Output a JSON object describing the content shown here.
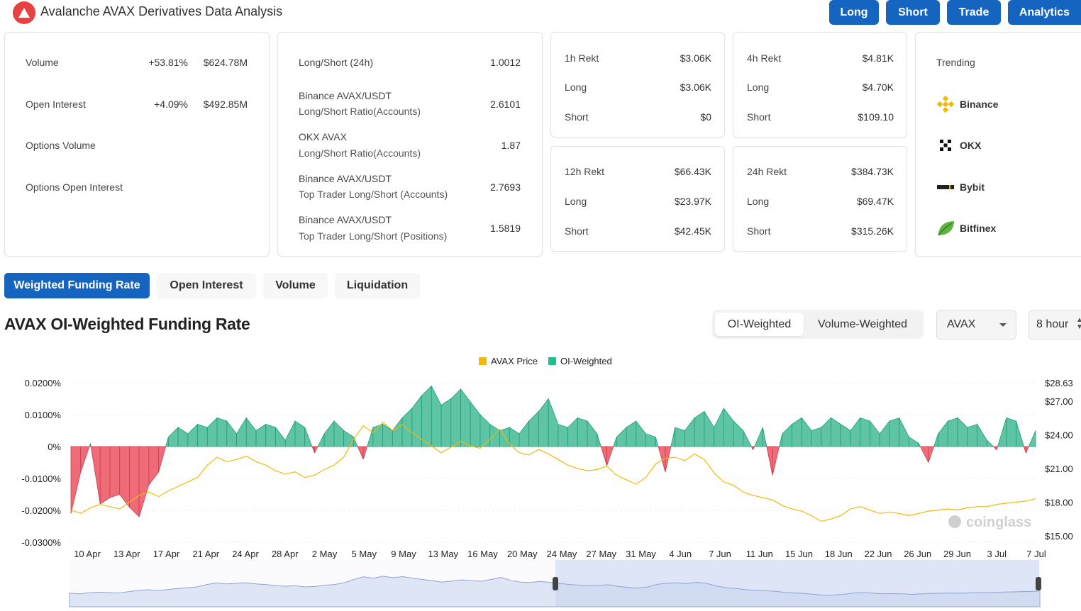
{
  "header": {
    "title": "Avalanche AVAX Derivatives Data Analysis",
    "nav": [
      "Long",
      "Short",
      "Trade",
      "Analytics"
    ]
  },
  "colors": {
    "accent": "#1565c0",
    "green": "#22a884",
    "red": "#e6324b",
    "price": "#f0b90b",
    "avax": "#e84142"
  },
  "stats": {
    "volume": {
      "label": "Volume",
      "change": "+53.81%",
      "value": "$624.78M"
    },
    "open_interest": {
      "label": "Open Interest",
      "change": "+4.09%",
      "value": "$492.85M"
    },
    "options_volume": {
      "label": "Options Volume"
    },
    "options_open_interest": {
      "label": "Options Open Interest"
    }
  },
  "ratios": [
    {
      "title": "Long/Short (24h)",
      "sub": "",
      "value": "1.0012"
    },
    {
      "title": "Binance AVAX/USDT",
      "sub": "Long/Short Ratio(Accounts)",
      "value": "2.6101"
    },
    {
      "title": "OKX AVAX",
      "sub": "Long/Short Ratio(Accounts)",
      "value": "1.87"
    },
    {
      "title": "Binance AVAX/USDT",
      "sub": "Top Trader Long/Short (Accounts)",
      "value": "2.7693"
    },
    {
      "title": "Binance AVAX/USDT",
      "sub": "Top Trader Long/Short (Positions)",
      "value": "1.5819"
    }
  ],
  "rekt": {
    "h1": {
      "label": "1h Rekt",
      "total": "$3.06K",
      "long_label": "Long",
      "long": "$3.06K",
      "short_label": "Short",
      "short": "$0"
    },
    "h4": {
      "label": "4h Rekt",
      "total": "$4.81K",
      "long_label": "Long",
      "long": "$4.70K",
      "short_label": "Short",
      "short": "$109.10"
    },
    "h12": {
      "label": "12h Rekt",
      "total": "$66.43K",
      "long_label": "Long",
      "long": "$23.97K",
      "short_label": "Short",
      "short": "$42.45K"
    },
    "h24": {
      "label": "24h Rekt",
      "total": "$384.73K",
      "long_label": "Long",
      "long": "$69.47K",
      "short_label": "Short",
      "short": "$315.26K"
    }
  },
  "trending": {
    "title": "Trending",
    "items": [
      {
        "name": "Binance",
        "icon": "binance-icon"
      },
      {
        "name": "OKX",
        "icon": "okx-icon"
      },
      {
        "name": "Bybit",
        "icon": "bybit-icon"
      },
      {
        "name": "Bitfinex",
        "icon": "bitfinex-icon"
      }
    ]
  },
  "tabs": [
    "Weighted Funding Rate",
    "Open Interest",
    "Volume",
    "Liquidation"
  ],
  "chart_section": {
    "title": "AVAX OI-Weighted Funding Rate",
    "toggle": [
      "OI-Weighted",
      "Volume-Weighted"
    ],
    "symbol_select": "AVAX",
    "interval_select": "8 hour",
    "watermark": "coinglass"
  },
  "chart_data": {
    "type": "area",
    "legend": [
      "AVAX Price",
      "OI-Weighted"
    ],
    "legend_position": "top-center",
    "x_ticks": [
      "10 Apr",
      "13 Apr",
      "17 Apr",
      "21 Apr",
      "24 Apr",
      "28 Apr",
      "2 May",
      "5 May",
      "9 May",
      "13 May",
      "16 May",
      "20 May",
      "24 May",
      "27 May",
      "31 May",
      "4 Jun",
      "7 Jun",
      "11 Jun",
      "15 Jun",
      "18 Jun",
      "22 Jun",
      "26 Jun",
      "29 Jun",
      "3 Jul",
      "7 Jul"
    ],
    "y_left_ticks": [
      "0.0200%",
      "0.0100%",
      "0%",
      "-0.0100%",
      "-0.0200%",
      "-0.0300%"
    ],
    "y_left_range": [
      -0.03,
      0.02
    ],
    "y_right_ticks": [
      "$28.63",
      "$27.00",
      "$24.00",
      "$21.00",
      "$18.00",
      "$15.00"
    ],
    "y_right_range": [
      15,
      28.63
    ],
    "funding_rate_pct": [
      -0.021,
      -0.008,
      0.001,
      -0.018,
      -0.016,
      -0.015,
      -0.019,
      -0.022,
      -0.012,
      -0.008,
      0.003,
      0.006,
      0.004,
      0.007,
      0.006,
      0.009,
      0.008,
      0.004,
      0.009,
      0.005,
      0.007,
      0.006,
      0.002,
      0.008,
      0.006,
      -0.002,
      0.004,
      0.008,
      0.005,
      0.003,
      -0.004,
      0.006,
      0.007,
      0.005,
      0.009,
      0.012,
      0.016,
      0.019,
      0.013,
      0.015,
      0.018,
      0.014,
      0.01,
      0.007,
      0.005,
      0.006,
      0.004,
      0.008,
      0.011,
      0.015,
      0.007,
      0.006,
      0.009,
      0.008,
      0.004,
      -0.006,
      0.003,
      0.006,
      0.008,
      0.004,
      0.003,
      -0.008,
      0.006,
      0.005,
      0.009,
      0.011,
      0.006,
      0.012,
      0.008,
      0.005,
      -0.001,
      0.006,
      -0.009,
      0.004,
      0.007,
      0.009,
      0.005,
      0.006,
      0.009,
      0.007,
      0.005,
      0.009,
      0.008,
      0.004,
      0.008,
      0.009,
      0.003,
      0.001,
      -0.005,
      0.004,
      0.008,
      0.009,
      0.006,
      0.007,
      0.002,
      -0.001,
      0.009,
      0.008,
      -0.002,
      0.005
    ],
    "avax_price_usd": [
      17.3,
      17.0,
      17.5,
      17.8,
      17.6,
      17.4,
      18.0,
      18.6,
      18.9,
      18.5,
      19.0,
      19.4,
      19.8,
      20.2,
      21.3,
      22.0,
      21.6,
      21.8,
      22.1,
      21.6,
      21.3,
      20.8,
      20.5,
      20.7,
      20.2,
      20.4,
      20.9,
      21.3,
      22.0,
      23.6,
      24.8,
      24.2,
      25.1,
      24.4,
      24.9,
      24.2,
      23.6,
      23.0,
      22.4,
      22.9,
      23.4,
      23.0,
      22.8,
      23.6,
      24.5,
      23.2,
      22.4,
      22.2,
      22.7,
      22.3,
      21.8,
      21.3,
      21.0,
      20.8,
      20.9,
      21.2,
      20.4,
      20.0,
      19.6,
      20.2,
      21.4,
      21.9,
      22.0,
      21.7,
      22.3,
      21.8,
      20.6,
      19.8,
      19.5,
      18.9,
      18.6,
      18.4,
      18.2,
      17.7,
      17.4,
      17.2,
      16.8,
      16.3,
      16.5,
      16.8,
      17.4,
      17.6,
      17.3,
      17.0,
      17.1,
      17.0,
      16.8,
      17.0,
      17.2,
      17.3,
      17.4,
      17.3,
      17.5,
      17.6,
      17.6,
      17.8,
      17.9,
      18.0,
      18.1,
      18.3
    ]
  }
}
